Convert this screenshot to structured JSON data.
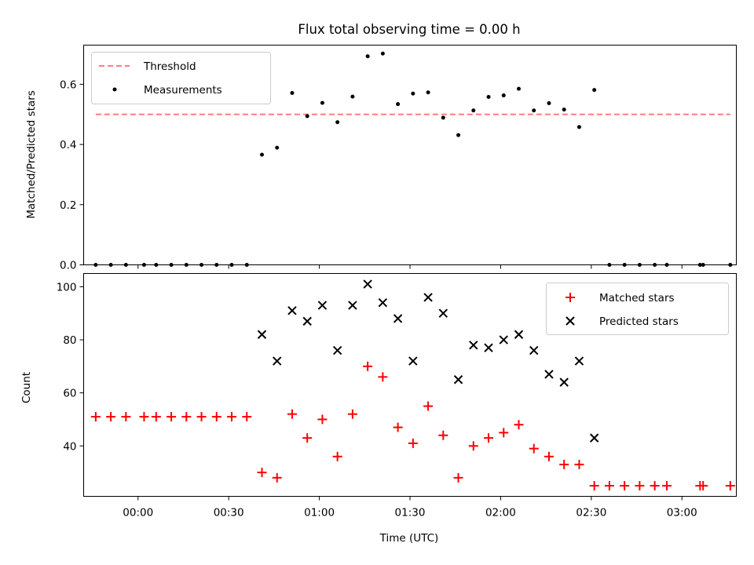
{
  "chart_data": [
    {
      "type": "scatter",
      "title": "Flux total observing time = 0.00 h",
      "ylabel": "Matched/Predicted stars",
      "xlim": [
        -18,
        198
      ],
      "ylim": [
        0,
        0.73
      ],
      "yticks": [
        0.0,
        0.2,
        0.4,
        0.6
      ],
      "ytick_labels": [
        "0.0",
        "0.2",
        "0.4",
        "0.6"
      ],
      "xticks": [
        0,
        30,
        60,
        90,
        120,
        150,
        180
      ],
      "threshold": {
        "name": "Threshold",
        "value": 0.5,
        "x_range": [
          -14,
          196
        ],
        "color": "#ff7f7f"
      },
      "series": [
        {
          "name": "Measurements",
          "color": "#000000",
          "marker": "dot",
          "points": [
            [
              -14,
              0
            ],
            [
              -9,
              0
            ],
            [
              -4,
              0
            ],
            [
              2,
              0
            ],
            [
              6,
              0
            ],
            [
              11,
              0
            ],
            [
              16,
              0
            ],
            [
              21,
              0
            ],
            [
              26,
              0
            ],
            [
              31,
              0
            ],
            [
              36,
              0
            ],
            [
              41,
              0.366
            ],
            [
              46,
              0.389
            ],
            [
              51,
              0.571
            ],
            [
              56,
              0.494
            ],
            [
              61,
              0.538
            ],
            [
              66,
              0.474
            ],
            [
              71,
              0.559
            ],
            [
              76,
              0.693
            ],
            [
              81,
              0.702
            ],
            [
              86,
              0.534
            ],
            [
              91,
              0.569
            ],
            [
              96,
              0.573
            ],
            [
              101,
              0.489
            ],
            [
              106,
              0.431
            ],
            [
              111,
              0.513
            ],
            [
              116,
              0.558
            ],
            [
              121,
              0.563
            ],
            [
              126,
              0.585
            ],
            [
              131,
              0.513
            ],
            [
              136,
              0.537
            ],
            [
              141,
              0.516
            ],
            [
              146,
              0.458
            ],
            [
              151,
              0.581
            ],
            [
              156,
              0
            ],
            [
              161,
              0
            ],
            [
              166,
              0
            ],
            [
              171,
              0
            ],
            [
              175,
              0
            ],
            [
              186,
              0
            ],
            [
              187,
              0
            ],
            [
              196,
              0
            ]
          ]
        }
      ],
      "legend": "upper-left",
      "grid": false
    },
    {
      "type": "scatter",
      "xlabel": "Time (UTC)",
      "ylabel": "Count",
      "xlim": [
        -18,
        198
      ],
      "ylim": [
        21,
        105
      ],
      "xticks": [
        0,
        30,
        60,
        90,
        120,
        150,
        180
      ],
      "xtick_labels": [
        "00:00",
        "00:30",
        "01:00",
        "01:30",
        "02:00",
        "02:30",
        "03:00"
      ],
      "yticks": [
        40,
        60,
        80,
        100
      ],
      "ytick_labels": [
        "40",
        "60",
        "80",
        "100"
      ],
      "series": [
        {
          "name": "Matched stars",
          "color": "#ff0000",
          "marker": "plus",
          "points": [
            [
              -14,
              51
            ],
            [
              -9,
              51
            ],
            [
              -4,
              51
            ],
            [
              2,
              51
            ],
            [
              6,
              51
            ],
            [
              11,
              51
            ],
            [
              16,
              51
            ],
            [
              21,
              51
            ],
            [
              26,
              51
            ],
            [
              31,
              51
            ],
            [
              36,
              51
            ],
            [
              41,
              30
            ],
            [
              46,
              28
            ],
            [
              51,
              52
            ],
            [
              56,
              43
            ],
            [
              61,
              50
            ],
            [
              66,
              36
            ],
            [
              71,
              52
            ],
            [
              76,
              70
            ],
            [
              81,
              66
            ],
            [
              86,
              47
            ],
            [
              91,
              41
            ],
            [
              96,
              55
            ],
            [
              101,
              44
            ],
            [
              106,
              28
            ],
            [
              111,
              40
            ],
            [
              116,
              43
            ],
            [
              121,
              45
            ],
            [
              126,
              48
            ],
            [
              131,
              39
            ],
            [
              136,
              36
            ],
            [
              141,
              33
            ],
            [
              146,
              33
            ],
            [
              151,
              25
            ],
            [
              156,
              25
            ],
            [
              161,
              25
            ],
            [
              166,
              25
            ],
            [
              171,
              25
            ],
            [
              175,
              25
            ],
            [
              186,
              25
            ],
            [
              187,
              25
            ],
            [
              196,
              25
            ]
          ]
        },
        {
          "name": "Predicted stars",
          "color": "#000000",
          "marker": "x",
          "points": [
            [
              41,
              82
            ],
            [
              46,
              72
            ],
            [
              51,
              91
            ],
            [
              56,
              87
            ],
            [
              61,
              93
            ],
            [
              66,
              76
            ],
            [
              71,
              93
            ],
            [
              76,
              101
            ],
            [
              81,
              94
            ],
            [
              86,
              88
            ],
            [
              91,
              72
            ],
            [
              96,
              96
            ],
            [
              101,
              90
            ],
            [
              106,
              65
            ],
            [
              111,
              78
            ],
            [
              116,
              77
            ],
            [
              121,
              80
            ],
            [
              126,
              82
            ],
            [
              131,
              76
            ],
            [
              136,
              67
            ],
            [
              141,
              64
            ],
            [
              146,
              72
            ],
            [
              151,
              43
            ]
          ]
        }
      ],
      "legend": "upper-right",
      "grid": false
    }
  ]
}
